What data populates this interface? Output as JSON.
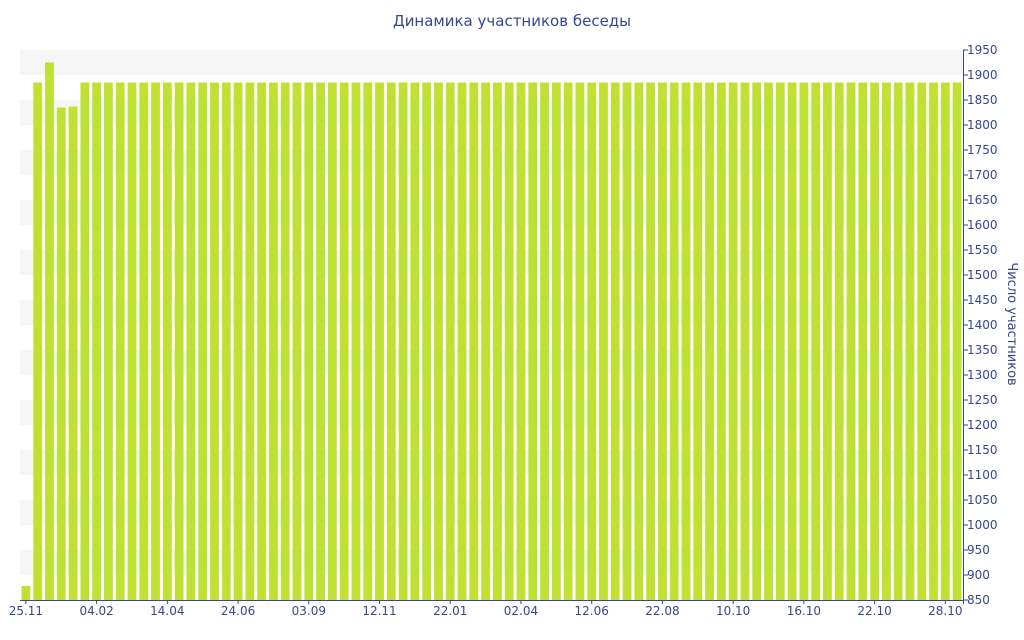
{
  "chart_data": {
    "type": "bar",
    "title": "Динамика участников беседы",
    "xlabel": "",
    "ylabel": "Число участников",
    "ylim": [
      850,
      1950
    ],
    "y_ticks": [
      850,
      900,
      950,
      1000,
      1050,
      1100,
      1150,
      1200,
      1250,
      1300,
      1350,
      1400,
      1450,
      1500,
      1550,
      1600,
      1650,
      1700,
      1750,
      1800,
      1850,
      1900,
      1950
    ],
    "x_tick_labels": [
      {
        "index": 0,
        "label": "25.11"
      },
      {
        "index": 6,
        "label": "04.02"
      },
      {
        "index": 12,
        "label": "14.04"
      },
      {
        "index": 18,
        "label": "24.06"
      },
      {
        "index": 24,
        "label": "03.09"
      },
      {
        "index": 30,
        "label": "12.11"
      },
      {
        "index": 36,
        "label": "22.01"
      },
      {
        "index": 42,
        "label": "02.04"
      },
      {
        "index": 48,
        "label": "12.06"
      },
      {
        "index": 54,
        "label": "22.08"
      },
      {
        "index": 60,
        "label": "10.10"
      },
      {
        "index": 66,
        "label": "16.10"
      },
      {
        "index": 72,
        "label": "22.10"
      },
      {
        "index": 78,
        "label": "28.10"
      }
    ],
    "bar_color": "#bfe133",
    "grid": "alternating horizontal bands",
    "y_axis_position": "right",
    "series": [
      {
        "values": [
          878,
          1885,
          1925,
          1835,
          1837,
          1885,
          1885,
          1885,
          1885,
          1885,
          1885,
          1885,
          1885,
          1885,
          1885,
          1885,
          1885,
          1885,
          1885,
          1885,
          1885,
          1885,
          1885,
          1885,
          1885,
          1885,
          1885,
          1885,
          1885,
          1885,
          1885,
          1885,
          1885,
          1885,
          1885,
          1885,
          1885,
          1885,
          1885,
          1885,
          1885,
          1885,
          1885,
          1885,
          1885,
          1885,
          1885,
          1885,
          1885,
          1885,
          1885,
          1885,
          1885,
          1885,
          1885,
          1885,
          1885,
          1885,
          1885,
          1885,
          1885,
          1885,
          1885,
          1885,
          1885,
          1885,
          1885,
          1885,
          1885,
          1885,
          1885,
          1885,
          1885,
          1885,
          1885,
          1885,
          1885,
          1885,
          1885,
          1885
        ]
      }
    ]
  }
}
